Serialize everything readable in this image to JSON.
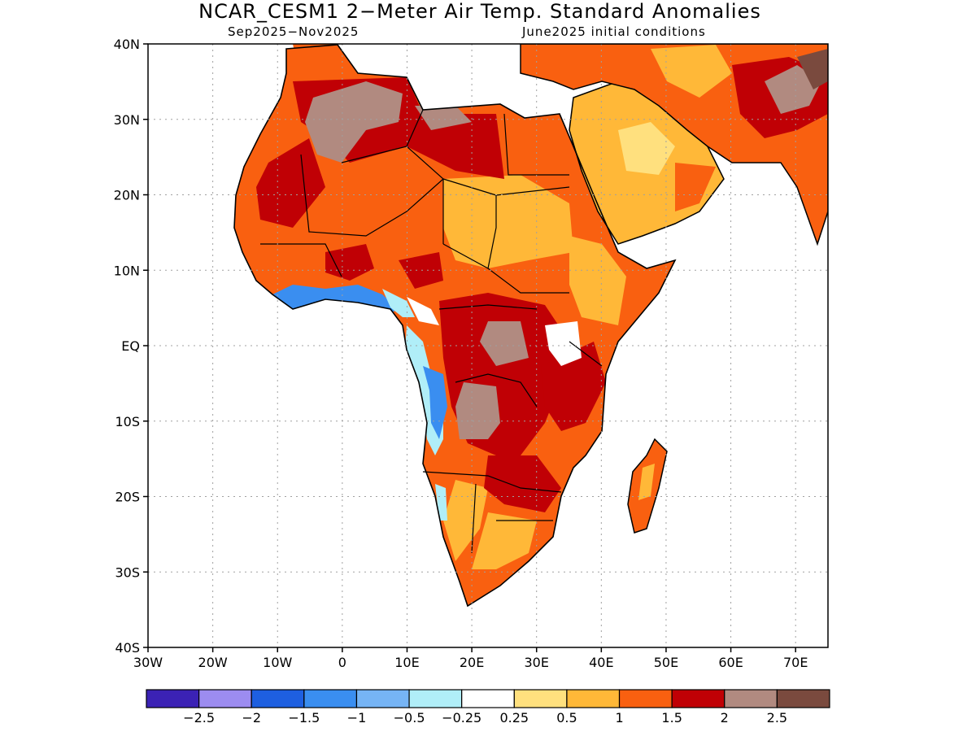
{
  "header": {
    "title": "NCAR_CESM1 2−Meter Air Temp. Standard Anomalies",
    "subtitle_left": "Sep2025−Nov2025",
    "subtitle_right": "June2025 initial conditions"
  },
  "map": {
    "lat_labels": [
      "40N",
      "30N",
      "20N",
      "10N",
      "EQ",
      "10S",
      "20S",
      "30S",
      "40S"
    ],
    "lon_labels": [
      "30W",
      "20W",
      "10W",
      "0",
      "10E",
      "20E",
      "30E",
      "40E",
      "50E",
      "60E",
      "70E"
    ],
    "grid": "dotted",
    "extent": {
      "lon": [
        -30,
        75
      ],
      "lat": [
        -40,
        40
      ]
    }
  },
  "legend": {
    "colors": [
      "#3b22b5",
      "#9c8cf0",
      "#1e5fe0",
      "#3a8ef0",
      "#76b4f5",
      "#b0eef8",
      "#ffffff",
      "#ffe07e",
      "#ffb838",
      "#f96010",
      "#c00005",
      "#b18a80",
      "#7a4a3e"
    ],
    "labels": [
      "−2.5",
      "−2",
      "−1.5",
      "−1",
      "−0.5",
      "−0.25",
      "0.25",
      "0.5",
      "1",
      "1.5",
      "2",
      "2.5"
    ]
  }
}
